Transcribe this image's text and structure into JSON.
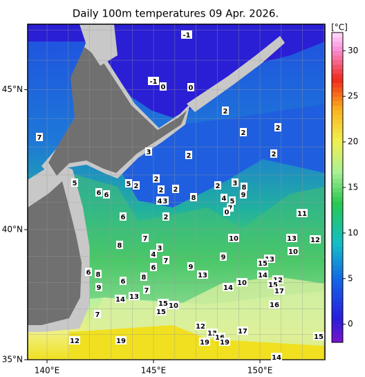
{
  "map": {
    "title": "Daily 100m temperatures 09 Apr. 2026.",
    "xlim": [
      139.09,
      153.05
    ],
    "ylim": [
      35,
      47.2
    ],
    "xticks": [
      {
        "value": 140,
        "label": "140°E"
      },
      {
        "value": 145,
        "label": "145°E"
      },
      {
        "value": 150,
        "label": "150°E"
      }
    ],
    "yticks": [
      {
        "value": 35,
        "label": "35°N"
      },
      {
        "value": 40,
        "label": "40°N"
      },
      {
        "value": 45,
        "label": "45°N"
      }
    ],
    "contour_labels": [
      -1,
      -1,
      0,
      0,
      2,
      2,
      2,
      7,
      3,
      2,
      2,
      2,
      5,
      6,
      6,
      5,
      2,
      2,
      2,
      2,
      3,
      8,
      4,
      3,
      8,
      4,
      5,
      9,
      7,
      0,
      6,
      2,
      11,
      7,
      10,
      13,
      12,
      8,
      3,
      4,
      10,
      9,
      7,
      13,
      15,
      6,
      9,
      6,
      8,
      8,
      13,
      14,
      6,
      10,
      12,
      15,
      9,
      7,
      14,
      17,
      14,
      13,
      15,
      10,
      16,
      15,
      7,
      12,
      13,
      16,
      17,
      12,
      19,
      19,
      19,
      15,
      14
    ]
  },
  "colorbar": {
    "unit": "[°C]",
    "clim": [
      -2,
      32
    ],
    "ticks": [
      0,
      5,
      10,
      15,
      20,
      25,
      30
    ]
  }
}
